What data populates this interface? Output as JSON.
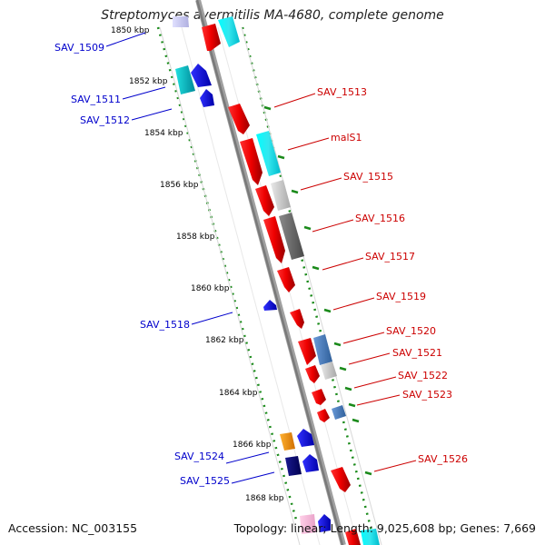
{
  "title": "Streptomyces avermitilis MA-4680, complete genome",
  "footer": {
    "accession": "Accession: NC_003155",
    "summary": "Topology: linear; Length: 9,025,608 bp; Genes: 7,669"
  },
  "colors": {
    "forward_label": "#cc0000",
    "reverse_label": "#0000cc",
    "backbone": "#808080",
    "tick_dots": "#1a8a1a",
    "scale_text": "#000000"
  },
  "scale_ticks": [
    "1850 kbp",
    "1852 kbp",
    "1854 kbp",
    "1856 kbp",
    "1858 kbp",
    "1860 kbp",
    "1862 kbp",
    "1864 kbp",
    "1866 kbp",
    "1868 kbp"
  ],
  "forward_labels": [
    "SAV_1513",
    "malS1",
    "SAV_1515",
    "SAV_1516",
    "SAV_1517",
    "SAV_1519",
    "SAV_1520",
    "SAV_1521",
    "SAV_1522",
    "SAV_1523",
    "SAV_1526"
  ],
  "reverse_labels": [
    "SAV_1509",
    "SAV_1511",
    "SAV_1512",
    "SAV_1518",
    "SAV_1524",
    "SAV_1525"
  ]
}
